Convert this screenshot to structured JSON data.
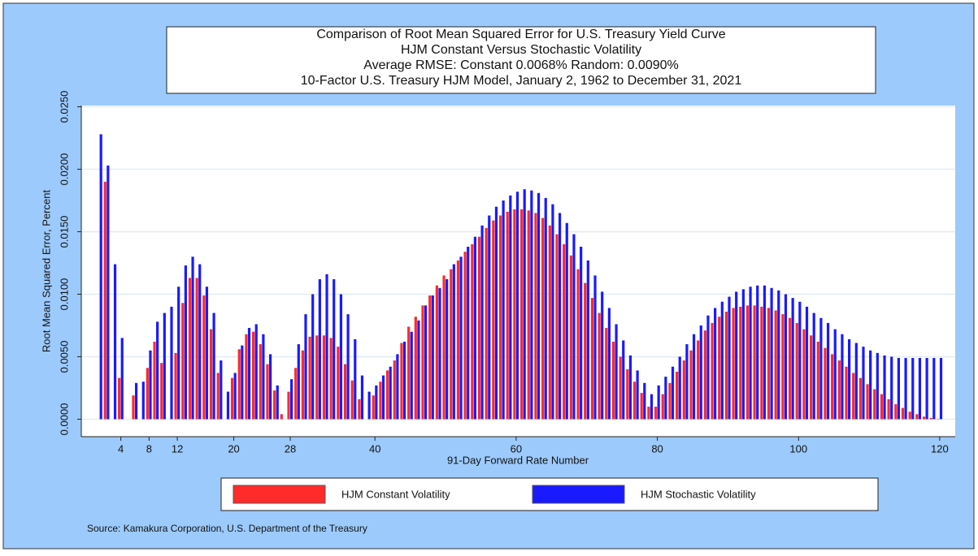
{
  "chart_data": {
    "type": "bar",
    "title": [
      "Comparison of Root Mean Squared Error for U.S. Treasury Yield Curve",
      "HJM Constant Versus Stochastic Volatility",
      "Average RMSE: Constant  0.0068%   Random:  0.0090%",
      "10-Factor U.S. Treasury HJM Model, January 2, 1962 to December 31, 2021"
    ],
    "x_label": "91-Day Forward Rate Number",
    "y_label": "Root Mean Squared Error, Percent",
    "source": "Source: Kamakura Corporation, U.S. Department of the Treasury",
    "x": [
      1,
      2,
      3,
      4,
      5,
      6,
      7,
      8,
      9,
      10,
      11,
      12,
      13,
      14,
      15,
      16,
      17,
      18,
      19,
      20,
      21,
      22,
      23,
      24,
      25,
      26,
      27,
      28,
      29,
      30,
      31,
      32,
      33,
      34,
      35,
      36,
      37,
      38,
      39,
      40,
      41,
      42,
      43,
      44,
      45,
      46,
      47,
      48,
      49,
      50,
      51,
      52,
      53,
      54,
      55,
      56,
      57,
      58,
      59,
      60,
      61,
      62,
      63,
      64,
      65,
      66,
      67,
      68,
      69,
      70,
      71,
      72,
      73,
      74,
      75,
      76,
      77,
      78,
      79,
      80,
      81,
      82,
      83,
      84,
      85,
      86,
      87,
      88,
      89,
      90,
      91,
      92,
      93,
      94,
      95,
      96,
      97,
      98,
      99,
      100,
      101,
      102,
      103,
      104,
      105,
      106,
      107,
      108,
      109,
      110,
      111,
      112,
      113,
      114,
      115,
      116,
      117,
      118,
      119,
      120
    ],
    "series": [
      {
        "name": "HJM Constant Volatility",
        "color": "#ff2a2a",
        "values": [
          null,
          0.019,
          null,
          0.0033,
          null,
          0.0019,
          null,
          0.0041,
          0.0062,
          0.0045,
          null,
          0.0053,
          0.0093,
          0.0113,
          0.0113,
          0.0099,
          0.0072,
          0.0037,
          null,
          0.0033,
          0.0056,
          0.0068,
          0.007,
          0.006,
          0.0044,
          0.0023,
          0.0004,
          0.0022,
          0.0041,
          0.0055,
          0.0066,
          0.0067,
          0.0067,
          0.0065,
          0.0058,
          0.0044,
          0.0031,
          0.0016,
          null,
          0.0019,
          0.003,
          0.0039,
          0.0047,
          0.0061,
          0.0074,
          0.0082,
          0.0091,
          0.0099,
          0.0107,
          0.0115,
          0.012,
          0.0127,
          0.0134,
          0.014,
          0.0146,
          0.0153,
          0.0159,
          0.0163,
          0.0166,
          0.0168,
          0.0168,
          0.0167,
          0.0165,
          0.0161,
          0.0155,
          0.0148,
          0.014,
          0.0131,
          0.012,
          0.0109,
          0.0097,
          0.0085,
          0.0073,
          0.0062,
          0.005,
          0.004,
          0.003,
          0.0021,
          0.001,
          0.001,
          0.002,
          0.0029,
          0.0038,
          0.0047,
          0.0055,
          0.0063,
          0.0071,
          0.0077,
          0.0082,
          0.0086,
          0.0089,
          0.009,
          0.0091,
          0.0091,
          0.009,
          0.0089,
          0.0087,
          0.0084,
          0.0081,
          0.0077,
          0.0072,
          0.0067,
          0.0062,
          0.0057,
          0.0052,
          0.0047,
          0.0042,
          0.0037,
          0.0033,
          0.0028,
          0.0024,
          0.002,
          0.0016,
          0.0012,
          0.0009,
          0.0006,
          0.0004,
          0.0002,
          0.0001,
          0
        ]
      },
      {
        "name": "HJM Stochastic Volatility",
        "color": "#1a1aff",
        "values": [
          0.0228,
          0.0203,
          0.0124,
          0.0065,
          null,
          0.0029,
          0.003,
          0.0055,
          0.0078,
          0.0085,
          0.009,
          0.0106,
          0.0123,
          0.013,
          0.0124,
          0.0106,
          0.0085,
          0.0047,
          0.0022,
          0.0037,
          0.0059,
          0.0073,
          0.0076,
          0.0068,
          0.0052,
          0.0027,
          null,
          0.0032,
          0.006,
          0.0084,
          0.01,
          0.0112,
          0.0116,
          0.0112,
          0.01,
          0.0084,
          0.0064,
          0.0035,
          0.0022,
          0.0027,
          0.0035,
          0.0042,
          0.0052,
          0.0062,
          0.007,
          0.0079,
          0.0091,
          0.0099,
          0.0105,
          0.0112,
          0.0124,
          0.013,
          0.0138,
          0.0146,
          0.0155,
          0.0163,
          0.017,
          0.0175,
          0.0179,
          0.0182,
          0.0184,
          0.0183,
          0.0181,
          0.0177,
          0.0172,
          0.0165,
          0.0157,
          0.0148,
          0.0138,
          0.0127,
          0.0115,
          0.0102,
          0.0089,
          0.0076,
          0.0063,
          0.0051,
          0.0039,
          0.0029,
          0.002,
          0.0027,
          0.0034,
          0.0042,
          0.005,
          0.006,
          0.0068,
          0.0075,
          0.0083,
          0.0089,
          0.0094,
          0.0098,
          0.0102,
          0.0104,
          0.0106,
          0.0107,
          0.0107,
          0.0105,
          0.0103,
          0.01,
          0.0097,
          0.0094,
          0.009,
          0.0085,
          0.0081,
          0.0077,
          0.0072,
          0.0068,
          0.0064,
          0.0061,
          0.0058,
          0.0055,
          0.0053,
          0.0051,
          0.005,
          0.0049,
          0.0049,
          0.0049,
          0.0049,
          0.0049,
          0.0049,
          0.0049
        ]
      }
    ],
    "xlim": [
      -1.6,
      122.2
    ],
    "xticks": [
      4,
      8,
      12,
      20,
      28,
      40,
      60,
      80,
      100,
      120
    ],
    "ylim": [
      -0.0014,
      0.0251
    ],
    "yticks": [
      {
        "value": 0,
        "label": "0.0000"
      },
      {
        "value": 0.005,
        "label": "0.0050"
      },
      {
        "value": 0.01,
        "label": "0.0100"
      },
      {
        "value": 0.015,
        "label": "0.0150"
      },
      {
        "value": 0.02,
        "label": "0.0200"
      },
      {
        "value": 0.025,
        "label": "0.0250"
      }
    ],
    "grid": true,
    "legend": "bottom"
  }
}
